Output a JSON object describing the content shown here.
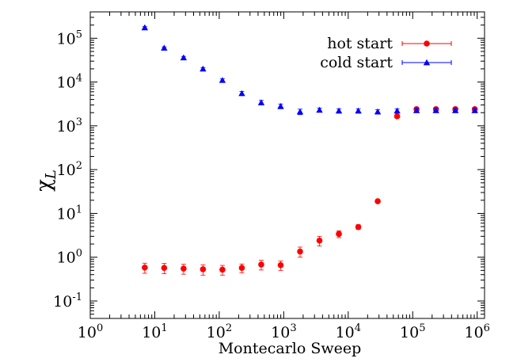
{
  "chart_data": {
    "type": "scatter",
    "xlabel": "Montecarlo Sweep",
    "ylabel": "χL",
    "xscale": "log",
    "yscale": "log",
    "xlim": [
      1,
      1300000
    ],
    "ylim": [
      0.04,
      400000
    ],
    "x_ticks": [
      {
        "base": "10",
        "exp": "0",
        "value": 1
      },
      {
        "base": "10",
        "exp": "1",
        "value": 10
      },
      {
        "base": "10",
        "exp": "2",
        "value": 100
      },
      {
        "base": "10",
        "exp": "3",
        "value": 1000
      },
      {
        "base": "10",
        "exp": "4",
        "value": 10000
      },
      {
        "base": "10",
        "exp": "5",
        "value": 100000
      },
      {
        "base": "10",
        "exp": "6",
        "value": 1000000
      }
    ],
    "y_ticks": [
      {
        "base": "10",
        "exp": "-1",
        "value": 0.1
      },
      {
        "base": "10",
        "exp": "0",
        "value": 1
      },
      {
        "base": "10",
        "exp": "1",
        "value": 10
      },
      {
        "base": "10",
        "exp": "2",
        "value": 100
      },
      {
        "base": "10",
        "exp": "3",
        "value": 1000
      },
      {
        "base": "10",
        "exp": "4",
        "value": 10000
      },
      {
        "base": "10",
        "exp": "5",
        "value": 100000
      }
    ],
    "legend_position": "top-right",
    "series": [
      {
        "name": "hot start",
        "color": "#ff0000",
        "marker": "circle",
        "x": [
          7,
          14,
          28,
          56,
          112,
          224,
          448,
          896,
          1792,
          3584,
          7168,
          14336,
          28672,
          57344,
          114688,
          229376,
          458752,
          917504
        ],
        "y": [
          0.58,
          0.57,
          0.55,
          0.53,
          0.52,
          0.57,
          0.68,
          0.66,
          1.35,
          2.4,
          3.4,
          4.9,
          19,
          1650,
          2400,
          2400,
          2400,
          2400
        ],
        "err": [
          0.15,
          0.15,
          0.14,
          0.14,
          0.13,
          0.13,
          0.17,
          0.16,
          0.35,
          0.6,
          0.6,
          0.6,
          0,
          120,
          180,
          180,
          180,
          180
        ]
      },
      {
        "name": "cold start",
        "color": "#0000ff",
        "marker": "triangle",
        "x": [
          7,
          14,
          28,
          56,
          112,
          224,
          448,
          896,
          1792,
          3584,
          7168,
          14336,
          28672,
          57344,
          114688,
          229376,
          458752,
          917504
        ],
        "y": [
          175000,
          60000,
          36000,
          20000,
          11000,
          5500,
          3400,
          2800,
          2100,
          2300,
          2200,
          2200,
          2100,
          2200,
          2250,
          2250,
          2250,
          2250
        ],
        "err": [
          9000,
          3500,
          2500,
          1300,
          800,
          600,
          400,
          350,
          300,
          250,
          250,
          250,
          250,
          250,
          250,
          250,
          250,
          250
        ]
      }
    ]
  }
}
